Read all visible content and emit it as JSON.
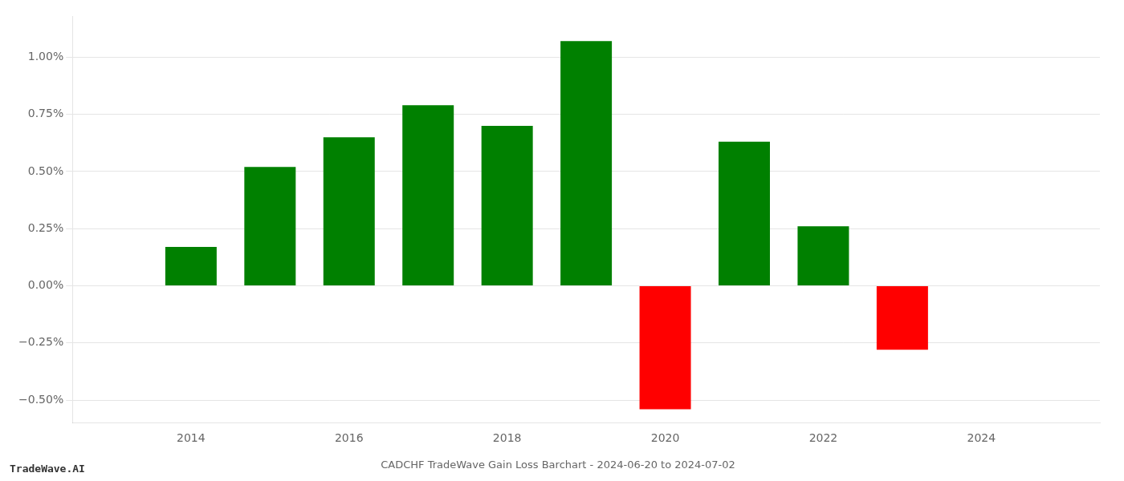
{
  "chart_data": {
    "type": "bar",
    "title": "CADCHF TradeWave Gain Loss Barchart - 2024-06-20 to 2024-07-02",
    "annotations": [
      "TradeWave.AI"
    ],
    "x": [
      2014,
      2015,
      2016,
      2017,
      2018,
      2019,
      2020,
      2021,
      2022,
      2023
    ],
    "values": [
      0.0017,
      0.0052,
      0.0065,
      0.0079,
      0.007,
      0.0107,
      -0.0054,
      0.0063,
      0.0026,
      -0.0028
    ],
    "colors": [
      "#008000",
      "#008000",
      "#008000",
      "#008000",
      "#008000",
      "#008000",
      "#ff0000",
      "#008000",
      "#008000",
      "#ff0000"
    ],
    "xlim": [
      2012.5,
      2025.5
    ],
    "xticks": [
      2014,
      2016,
      2018,
      2020,
      2022,
      2024
    ],
    "ylim": [
      -0.006,
      0.0118
    ],
    "yticks": [
      {
        "value": -0.005,
        "label": "−0.50%"
      },
      {
        "value": -0.0025,
        "label": "−0.25%"
      },
      {
        "value": 0.0,
        "label": "0.00%"
      },
      {
        "value": 0.0025,
        "label": "0.25%"
      },
      {
        "value": 0.005,
        "label": "0.50%"
      },
      {
        "value": 0.0075,
        "label": "0.75%"
      },
      {
        "value": 0.01,
        "label": "1.00%"
      }
    ],
    "grid": "y"
  }
}
